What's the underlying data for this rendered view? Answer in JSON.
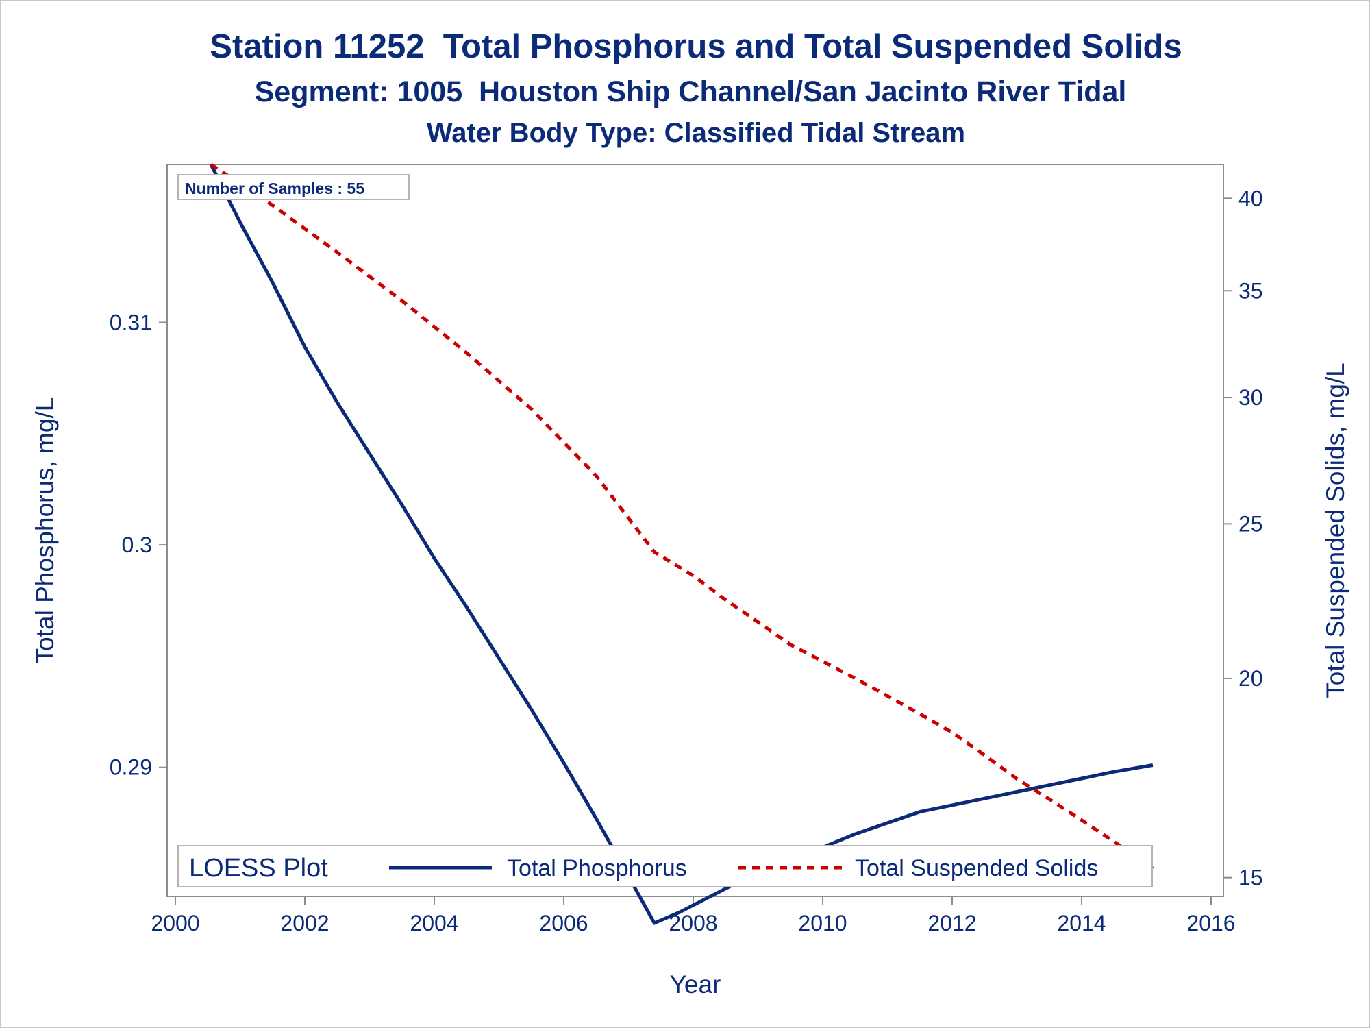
{
  "chart_data": {
    "type": "line",
    "title": "Station 11252  Total Phosphorus and Total Suspended Solids",
    "subtitle": "Segment: 1005  Houston Ship Channel/San Jacinto River Tidal",
    "subtitle2": "Water Body Type: Classified Tidal Stream",
    "xlabel": "Year",
    "ylabel": "Total Phosphorus, mg/L",
    "y2label": "Total Suspended Solids, mg/L",
    "xlim": [
      2000,
      2016
    ],
    "ylim": [
      0.2842,
      0.3171
    ],
    "y2lim": [
      14.6,
      42.0
    ],
    "y2scale": "log",
    "xticks": [
      "2000",
      "2002",
      "2004",
      "2006",
      "2008",
      "2010",
      "2012",
      "2014",
      "2016"
    ],
    "yticks": [
      "0.29",
      "0.3",
      "0.31"
    ],
    "y2ticks": [
      "15",
      "20",
      "25",
      "30",
      "35",
      "40"
    ],
    "annotation": "Number of Samples : 55",
    "legend": {
      "title": "LOESS Plot",
      "placement": "bottom-inside",
      "entries": [
        "Total Phosphorus",
        "Total Suspended Solids"
      ]
    },
    "series": [
      {
        "name": "Total Phosphorus",
        "axis": "left",
        "color": "#0b2a78",
        "style": "solid",
        "x": [
          2000.55,
          2001.0,
          2001.5,
          2002.0,
          2002.5,
          2003.0,
          2003.5,
          2004.0,
          2004.5,
          2005.0,
          2005.5,
          2006.0,
          2006.5,
          2007.0,
          2007.4,
          2007.8,
          2008.2,
          2008.6,
          2009.0,
          2009.5,
          2010.0,
          2010.5,
          2011.0,
          2011.5,
          2012.0,
          2012.5,
          2013.0,
          2013.5,
          2014.0,
          2014.5,
          2015.1
        ],
        "y": [
          0.3171,
          0.3145,
          0.3118,
          0.3089,
          0.3064,
          0.3041,
          0.3018,
          0.2994,
          0.2972,
          0.2949,
          0.2926,
          0.2902,
          0.2877,
          0.2851,
          0.283,
          0.2835,
          0.2841,
          0.2847,
          0.2853,
          0.2859,
          0.2864,
          0.287,
          0.2875,
          0.288,
          0.2883,
          0.2886,
          0.2889,
          0.2892,
          0.2895,
          0.2898,
          0.2901
        ]
      },
      {
        "name": "Total Suspended Solids",
        "axis": "right",
        "color": "#cc0000",
        "style": "dashed",
        "x": [
          2000.55,
          2001.5,
          2002.5,
          2003.5,
          2004.5,
          2005.5,
          2006.5,
          2007.4,
          2008.0,
          2008.5,
          2009.0,
          2009.5,
          2010.0,
          2010.5,
          2011.0,
          2011.5,
          2012.0,
          2012.5,
          2013.0,
          2013.5,
          2014.0,
          2014.5,
          2015.1
        ],
        "y": [
          42.0,
          39.6,
          37.0,
          34.5,
          32.0,
          29.5,
          26.8,
          24.0,
          23.2,
          22.4,
          21.7,
          21.0,
          20.5,
          20.0,
          19.5,
          19.0,
          18.5,
          17.9,
          17.3,
          16.8,
          16.3,
          15.8,
          15.2
        ]
      }
    ]
  }
}
